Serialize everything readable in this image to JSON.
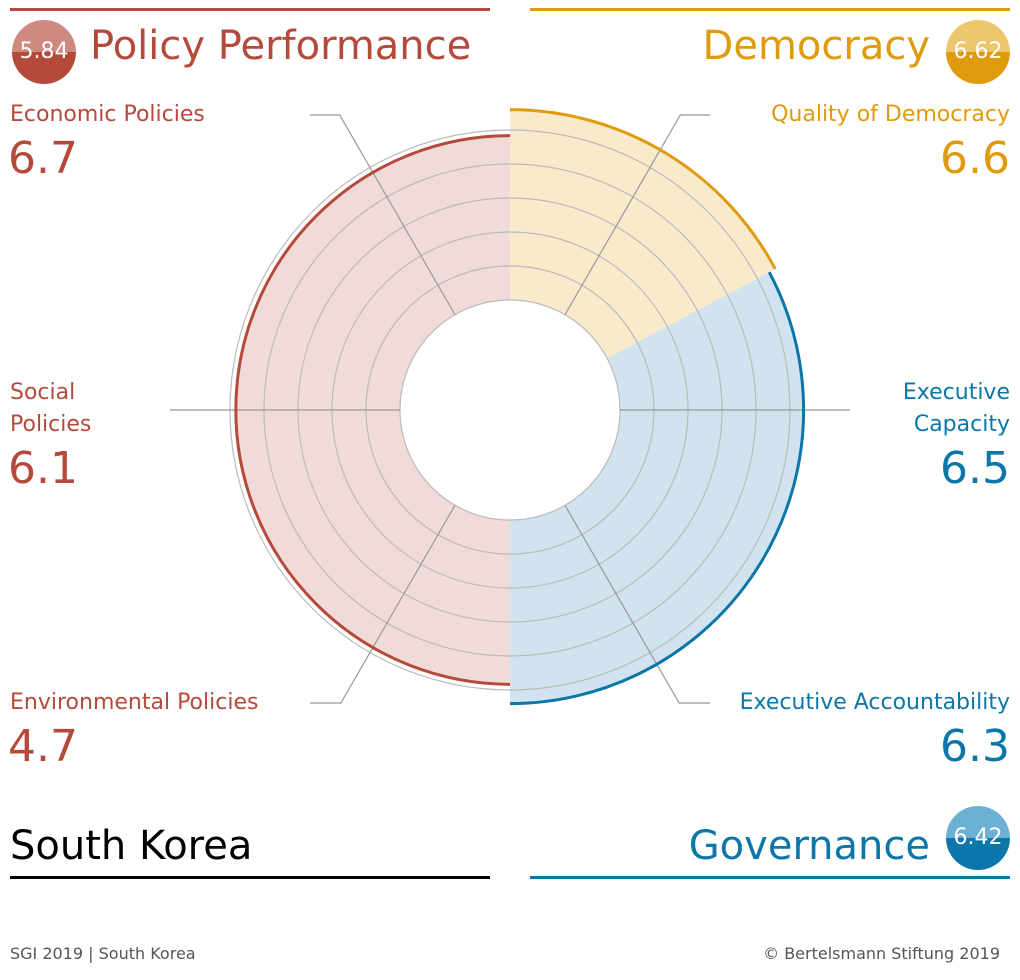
{
  "colors": {
    "policy_performance": "#b5493a",
    "democracy": "#e09b0c",
    "governance": "#0b76a9",
    "policy_fill": "#f1dbd8",
    "democracy_fill": "#faeacc",
    "governance_fill": "#d0e3ee",
    "grid": "#bbbbbb"
  },
  "country": "South Korea",
  "pillars": {
    "policy_performance": {
      "title": "Policy Performance",
      "score": "5.84"
    },
    "democracy": {
      "title": "Democracy",
      "score": "6.62"
    },
    "governance": {
      "title": "Governance",
      "score": "6.42"
    }
  },
  "chart_data": {
    "type": "radial",
    "categories": [
      "Quality of Democracy",
      "Executive Capacity",
      "Executive Accountability",
      "Environmental Policies",
      "Social Policies",
      "Economic Policies"
    ],
    "values": [
      6.6,
      6.5,
      6.3,
      4.7,
      6.1,
      6.7
    ],
    "groups": [
      "democracy",
      "governance",
      "governance",
      "policy_performance",
      "policy_performance",
      "policy_performance"
    ],
    "rlim": [
      1,
      10
    ],
    "grid": true
  },
  "indicators": {
    "economic": {
      "label": "Economic Policies",
      "value": "6.7"
    },
    "social": {
      "label_line1": "Social",
      "label_line2": "Policies",
      "value": "6.1"
    },
    "environmental": {
      "label": "Environmental Policies",
      "value": "4.7"
    },
    "quality_democracy": {
      "label": "Quality of Democracy",
      "value": "6.6"
    },
    "executive_capacity": {
      "label_line1": "Executive",
      "label_line2": "Capacity",
      "value": "6.5"
    },
    "executive_accountability": {
      "label": "Executive Accountability",
      "value": "6.3"
    }
  },
  "footer": {
    "left": "SGI 2019 | South Korea",
    "right": "© Bertelsmann Stiftung 2019"
  }
}
